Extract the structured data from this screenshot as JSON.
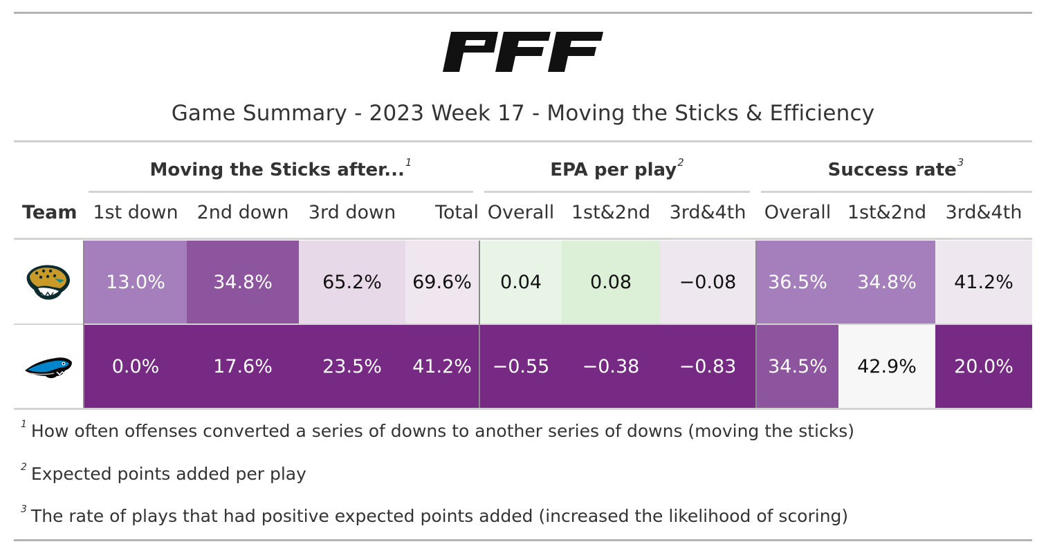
{
  "brand": {
    "logo_text": "PFF"
  },
  "title": "Game Summary - 2023 Week 17 - Moving the Sticks & Efficiency",
  "spanners": [
    {
      "label": "Moving the Sticks after...",
      "note": "1"
    },
    {
      "label": "EPA per play",
      "note": "2"
    },
    {
      "label": "Success rate",
      "note": "3"
    }
  ],
  "columns": [
    "Team",
    "1st down",
    "2nd down",
    "3rd down",
    "Total",
    "Overall",
    "1st&2nd",
    "3rd&4th",
    "Overall",
    "1st&2nd",
    "3rd&4th"
  ],
  "rows": [
    {
      "team_icon": "jacksonville-jaguars-logo-icon",
      "values": [
        "13.0%",
        "34.8%",
        "65.2%",
        "69.6%",
        "0.04",
        "0.08",
        "−0.08",
        "36.5%",
        "34.8%",
        "41.2%"
      ],
      "fills": [
        "#a47fbb",
        "#8c559d",
        "#e8d9e9",
        "#efe6ef",
        "#e7f4e6",
        "#dbf0d7",
        "#efe7f0",
        "#a47fbb",
        "#a47fbb",
        "#efe7f0"
      ],
      "text_colors": [
        "#ffffff",
        "#ffffff",
        "#111111",
        "#111111",
        "#111111",
        "#111111",
        "#111111",
        "#ffffff",
        "#ffffff",
        "#111111"
      ]
    },
    {
      "team_icon": "carolina-panthers-logo-icon",
      "values": [
        "0.0%",
        "17.6%",
        "23.5%",
        "41.2%",
        "−0.55",
        "−0.38",
        "−0.83",
        "34.5%",
        "42.9%",
        "20.0%"
      ],
      "fills": [
        "#762a83",
        "#762a83",
        "#762a83",
        "#762a83",
        "#762a83",
        "#762a83",
        "#762a83",
        "#8c559d",
        "#f7f7f7",
        "#762a83"
      ],
      "text_colors": [
        "#ffffff",
        "#ffffff",
        "#ffffff",
        "#ffffff",
        "#ffffff",
        "#ffffff",
        "#ffffff",
        "#ffffff",
        "#111111",
        "#ffffff"
      ]
    }
  ],
  "footnotes": [
    {
      "mark": "1",
      "text": "How often offenses converted a series of downs to another series of downs (moving the sticks)"
    },
    {
      "mark": "2",
      "text": "Expected points added per play"
    },
    {
      "mark": "3",
      "text": "The rate of plays that had positive expected points added (increased the likelihood of scoring)"
    }
  ]
}
